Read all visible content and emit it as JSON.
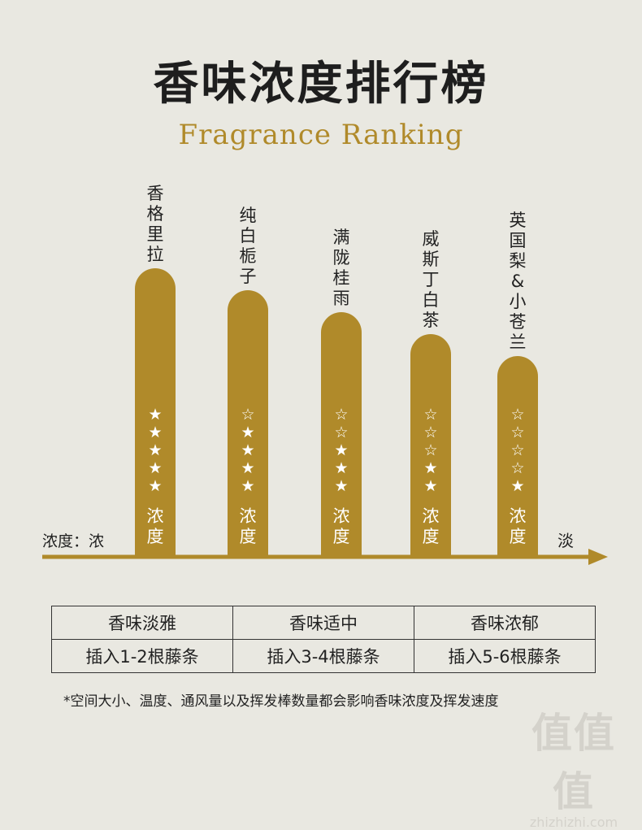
{
  "page": {
    "background": "#e9e8e1",
    "accent": "#b08a2a"
  },
  "header": {
    "title": "香味浓度排行榜",
    "subtitle": "Fragrance Ranking"
  },
  "chart_data": {
    "type": "bar",
    "title": "香味浓度排行榜",
    "subtitle": "Fragrance Ranking",
    "categories": [
      "香格里拉",
      "纯白栀子",
      "满陇桂雨",
      "威斯丁白茶",
      "英国梨&小苍兰"
    ],
    "values": [
      5,
      4,
      3,
      2,
      1
    ],
    "max_stars": 5,
    "bar_label": "浓度",
    "axis_label": "浓度：浓",
    "axis_end_label": "淡",
    "ylim": [
      0,
      5
    ],
    "bar_color": "#b08a2a",
    "star_filled": "★",
    "star_empty": "☆"
  },
  "table": {
    "rows": [
      [
        "香味淡雅",
        "香味适中",
        "香味浓郁"
      ],
      [
        "插入1-2根藤条",
        "插入3-4根藤条",
        "插入5-6根藤条"
      ]
    ]
  },
  "footnote": "*空间大小、温度、通风量以及挥发棒数量都会影响香味浓度及挥发速度",
  "watermark": {
    "main": "值值值",
    "url": "zhizhizhi.com"
  }
}
